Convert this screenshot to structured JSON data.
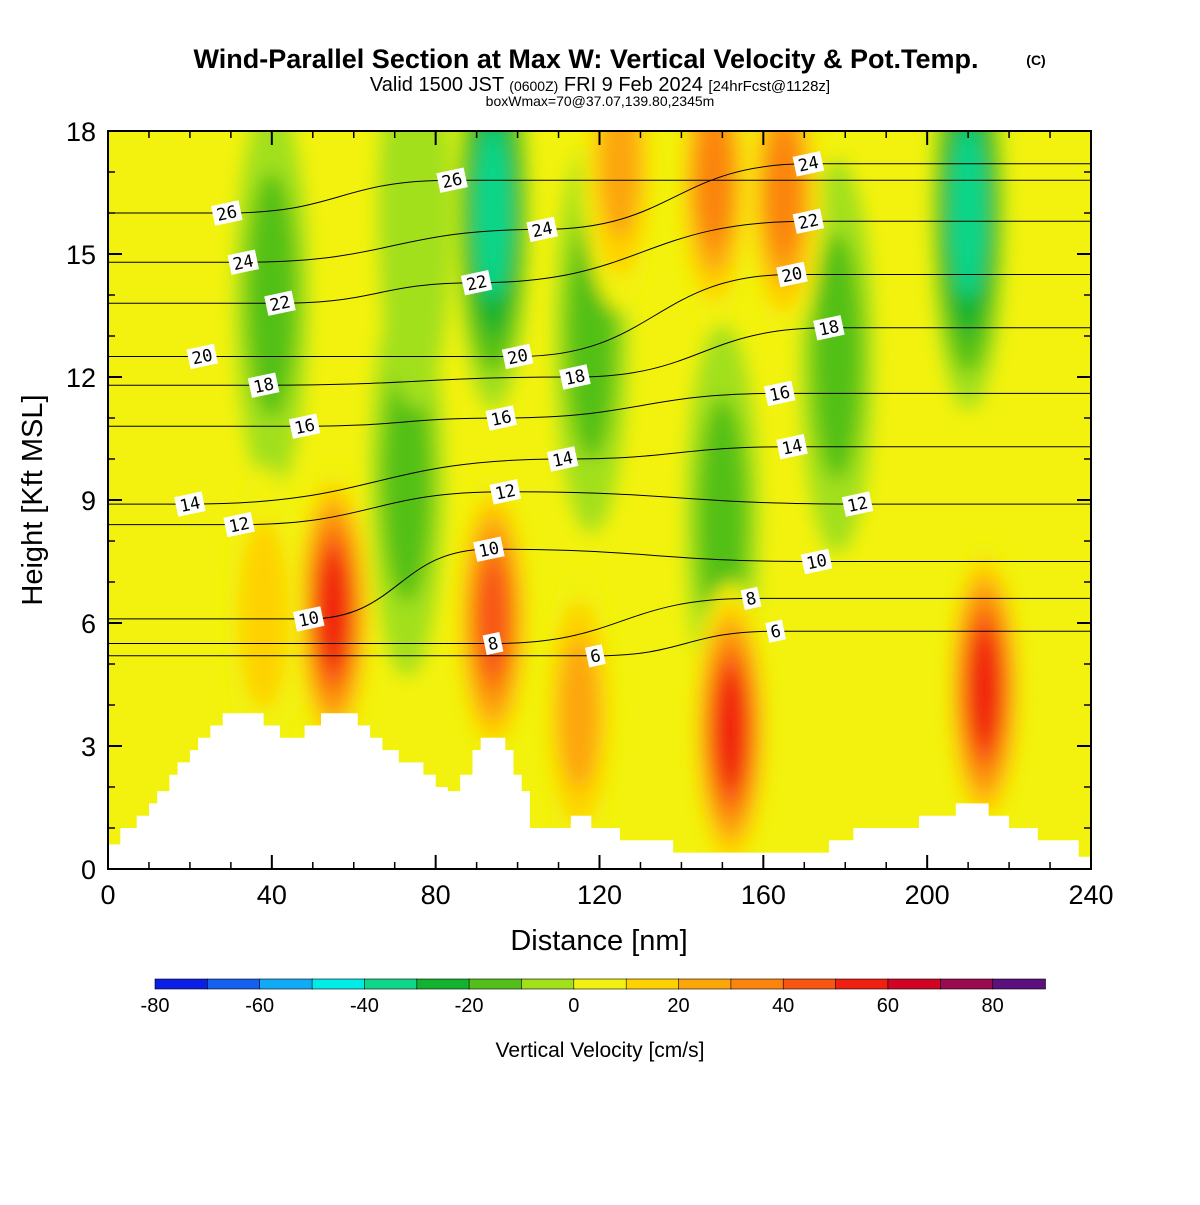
{
  "title": {
    "main": "Wind-Parallel Section at Max W: Vertical Velocity & Pot.Temp.",
    "copyright": "(C)",
    "valid_prefix": "Valid 1500 JST",
    "valid_utc": "(0600Z)",
    "valid_date": "FRI 9 Feb 2024",
    "forecast": "[24hrFcst@1128z]",
    "boxinfo": "boxWmax=70@37.07,139.80,2345m"
  },
  "chart_data": {
    "type": "heatmap",
    "xlabel": "Distance [nm]",
    "ylabel": "Height [Kft MSL]",
    "xlim": [
      0,
      240
    ],
    "ylim": [
      0,
      18
    ],
    "x_ticks": [
      "0",
      "40",
      "80",
      "120",
      "160",
      "200",
      "240"
    ],
    "y_ticks": [
      "0",
      "3",
      "6",
      "9",
      "12",
      "15",
      "18"
    ],
    "colorbar": {
      "title": "Vertical Velocity [cm/s]",
      "bounds": [
        -80,
        90
      ],
      "step": 10,
      "tick_labels": [
        "-80",
        "-60",
        "-40",
        "-20",
        "0",
        "20",
        "40",
        "60",
        "80"
      ],
      "colors": [
        "#0a1ee6",
        "#1560f0",
        "#10aaf6",
        "#00ece6",
        "#10d68a",
        "#12b22e",
        "#52c018",
        "#a2e01a",
        "#f2f20e",
        "#fed200",
        "#fca60a",
        "#fb840c",
        "#f85412",
        "#f02010",
        "#d20424",
        "#9a0a50",
        "#5c127e"
      ]
    },
    "terrain": [
      {
        "x": 0,
        "h": 0.6
      },
      {
        "x": 3,
        "h": 0.6
      },
      {
        "x": 3,
        "h": 1.0
      },
      {
        "x": 7,
        "h": 1.0
      },
      {
        "x": 7,
        "h": 1.3
      },
      {
        "x": 10,
        "h": 1.3
      },
      {
        "x": 10,
        "h": 1.6
      },
      {
        "x": 12,
        "h": 1.6
      },
      {
        "x": 12,
        "h": 1.9
      },
      {
        "x": 15,
        "h": 1.9
      },
      {
        "x": 15,
        "h": 2.3
      },
      {
        "x": 17,
        "h": 2.3
      },
      {
        "x": 17,
        "h": 2.6
      },
      {
        "x": 20,
        "h": 2.6
      },
      {
        "x": 20,
        "h": 2.9
      },
      {
        "x": 22,
        "h": 2.9
      },
      {
        "x": 22,
        "h": 3.2
      },
      {
        "x": 25,
        "h": 3.2
      },
      {
        "x": 25,
        "h": 3.5
      },
      {
        "x": 28,
        "h": 3.5
      },
      {
        "x": 28,
        "h": 3.8
      },
      {
        "x": 38,
        "h": 3.8
      },
      {
        "x": 38,
        "h": 3.5
      },
      {
        "x": 42,
        "h": 3.5
      },
      {
        "x": 42,
        "h": 3.2
      },
      {
        "x": 48,
        "h": 3.2
      },
      {
        "x": 48,
        "h": 3.5
      },
      {
        "x": 52,
        "h": 3.5
      },
      {
        "x": 52,
        "h": 3.8
      },
      {
        "x": 61,
        "h": 3.8
      },
      {
        "x": 61,
        "h": 3.5
      },
      {
        "x": 64,
        "h": 3.5
      },
      {
        "x": 64,
        "h": 3.2
      },
      {
        "x": 67,
        "h": 3.2
      },
      {
        "x": 67,
        "h": 2.9
      },
      {
        "x": 71,
        "h": 2.9
      },
      {
        "x": 71,
        "h": 2.6
      },
      {
        "x": 77,
        "h": 2.6
      },
      {
        "x": 77,
        "h": 2.3
      },
      {
        "x": 80,
        "h": 2.3
      },
      {
        "x": 80,
        "h": 2.0
      },
      {
        "x": 83,
        "h": 2.0
      },
      {
        "x": 83,
        "h": 1.9
      },
      {
        "x": 86,
        "h": 1.9
      },
      {
        "x": 86,
        "h": 2.3
      },
      {
        "x": 89,
        "h": 2.3
      },
      {
        "x": 89,
        "h": 2.9
      },
      {
        "x": 91,
        "h": 2.9
      },
      {
        "x": 91,
        "h": 3.2
      },
      {
        "x": 97,
        "h": 3.2
      },
      {
        "x": 97,
        "h": 2.9
      },
      {
        "x": 99,
        "h": 2.9
      },
      {
        "x": 99,
        "h": 2.3
      },
      {
        "x": 101,
        "h": 2.3
      },
      {
        "x": 101,
        "h": 1.9
      },
      {
        "x": 103,
        "h": 1.9
      },
      {
        "x": 103,
        "h": 1.0
      },
      {
        "x": 113,
        "h": 1.0
      },
      {
        "x": 113,
        "h": 1.3
      },
      {
        "x": 118,
        "h": 1.3
      },
      {
        "x": 118,
        "h": 1.0
      },
      {
        "x": 125,
        "h": 1.0
      },
      {
        "x": 125,
        "h": 0.7
      },
      {
        "x": 138,
        "h": 0.7
      },
      {
        "x": 138,
        "h": 0.4
      },
      {
        "x": 176,
        "h": 0.4
      },
      {
        "x": 176,
        "h": 0.7
      },
      {
        "x": 182,
        "h": 0.7
      },
      {
        "x": 182,
        "h": 1.0
      },
      {
        "x": 198,
        "h": 1.0
      },
      {
        "x": 198,
        "h": 1.3
      },
      {
        "x": 207,
        "h": 1.3
      },
      {
        "x": 207,
        "h": 1.6
      },
      {
        "x": 215,
        "h": 1.6
      },
      {
        "x": 215,
        "h": 1.3
      },
      {
        "x": 220,
        "h": 1.3
      },
      {
        "x": 220,
        "h": 1.0
      },
      {
        "x": 227,
        "h": 1.0
      },
      {
        "x": 227,
        "h": 0.7
      },
      {
        "x": 237,
        "h": 0.7
      },
      {
        "x": 237,
        "h": 0.3
      },
      {
        "x": 240,
        "h": 0.3
      }
    ],
    "updrafts": [
      {
        "x": 55,
        "z": 6.3,
        "w": 68
      },
      {
        "x": 38,
        "z": 6.2,
        "w": 28
      },
      {
        "x": 94,
        "z": 6.1,
        "w": 58
      },
      {
        "x": 115,
        "z": 3.8,
        "w": 38
      },
      {
        "x": 152,
        "z": 3.4,
        "w": 62
      },
      {
        "x": 214,
        "z": 4.4,
        "w": 60
      },
      {
        "x": 148,
        "z": 16.8,
        "w": 45
      },
      {
        "x": 165,
        "z": 16.5,
        "w": 42
      },
      {
        "x": 125,
        "z": 17.2,
        "w": 35
      }
    ],
    "downdrafts": [
      {
        "x": 94,
        "z": 16.0,
        "w": -45
      },
      {
        "x": 210,
        "z": 16.0,
        "w": -48
      },
      {
        "x": 40,
        "z": 14.0,
        "w": -22
      },
      {
        "x": 73,
        "z": 9.5,
        "w": -22
      },
      {
        "x": 118,
        "z": 13.0,
        "w": -20
      },
      {
        "x": 178,
        "z": 12.5,
        "w": -20
      },
      {
        "x": 150,
        "z": 8.5,
        "w": -20
      },
      {
        "x": 75,
        "z": 16.0,
        "w": -18
      }
    ],
    "theta_labels": [
      {
        "text": "26",
        "x": 29,
        "z": 16.0
      },
      {
        "text": "24",
        "x": 33,
        "z": 14.8
      },
      {
        "text": "22",
        "x": 42,
        "z": 13.8
      },
      {
        "text": "20",
        "x": 23,
        "z": 12.5
      },
      {
        "text": "18",
        "x": 38,
        "z": 11.8
      },
      {
        "text": "16",
        "x": 48,
        "z": 10.8
      },
      {
        "text": "14",
        "x": 20,
        "z": 8.9
      },
      {
        "text": "12",
        "x": 32,
        "z": 8.4
      },
      {
        "text": "10",
        "x": 49,
        "z": 6.1
      },
      {
        "text": "26",
        "x": 84,
        "z": 16.8
      },
      {
        "text": "22",
        "x": 90,
        "z": 14.3
      },
      {
        "text": "24",
        "x": 106,
        "z": 15.6
      },
      {
        "text": "20",
        "x": 100,
        "z": 12.5
      },
      {
        "text": "18",
        "x": 114,
        "z": 12.0
      },
      {
        "text": "16",
        "x": 96,
        "z": 11.0
      },
      {
        "text": "14",
        "x": 111,
        "z": 10.0
      },
      {
        "text": "12",
        "x": 97,
        "z": 9.2
      },
      {
        "text": "10",
        "x": 93,
        "z": 7.8
      },
      {
        "text": "8",
        "x": 94,
        "z": 5.5
      },
      {
        "text": "6",
        "x": 119,
        "z": 5.2
      },
      {
        "text": "24",
        "x": 171,
        "z": 17.2
      },
      {
        "text": "22",
        "x": 171,
        "z": 15.8
      },
      {
        "text": "20",
        "x": 167,
        "z": 14.5
      },
      {
        "text": "18",
        "x": 176,
        "z": 13.2
      },
      {
        "text": "16",
        "x": 164,
        "z": 11.6
      },
      {
        "text": "14",
        "x": 167,
        "z": 10.3
      },
      {
        "text": "12",
        "x": 183,
        "z": 8.9
      },
      {
        "text": "10",
        "x": 173,
        "z": 7.5
      },
      {
        "text": "8",
        "x": 157,
        "z": 6.6
      },
      {
        "text": "6",
        "x": 163,
        "z": 5.8
      }
    ]
  }
}
